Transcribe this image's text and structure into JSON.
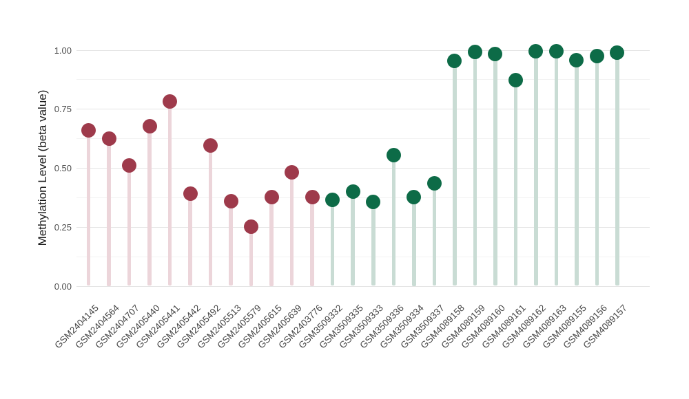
{
  "chart_data": {
    "type": "scatter",
    "variant": "lollipop",
    "title": "",
    "xlabel": "",
    "ylabel": "Methylation Level (beta value)",
    "ylim": [
      0,
      1
    ],
    "grid": true,
    "legend_position": "none",
    "yticks": [
      {
        "label": "0.00",
        "value": 0.0
      },
      {
        "label": "0.25",
        "value": 0.25
      },
      {
        "label": "0.50",
        "value": 0.5
      },
      {
        "label": "0.75",
        "value": 0.75
      },
      {
        "label": "1.00",
        "value": 1.0
      }
    ],
    "minor_gridlines": [
      0.125,
      0.375,
      0.625,
      0.875
    ],
    "groups": {
      "maroon": {
        "dot_color": "#9e3a4b",
        "stem_color": "#ecd5da"
      },
      "green": {
        "dot_color": "#0d6b47",
        "stem_color": "#c9dcd4"
      }
    },
    "points": [
      {
        "label": "GSM2404145",
        "value": 0.66,
        "group": "maroon"
      },
      {
        "label": "GSM2404564",
        "value": 0.625,
        "group": "maroon"
      },
      {
        "label": "GSM2404707",
        "value": 0.51,
        "group": "maroon"
      },
      {
        "label": "GSM2405440",
        "value": 0.675,
        "group": "maroon"
      },
      {
        "label": "GSM2405441",
        "value": 0.78,
        "group": "maroon"
      },
      {
        "label": "GSM2405442",
        "value": 0.39,
        "group": "maroon"
      },
      {
        "label": "GSM2405492",
        "value": 0.595,
        "group": "maroon"
      },
      {
        "label": "GSM2405513",
        "value": 0.36,
        "group": "maroon"
      },
      {
        "label": "GSM2405579",
        "value": 0.25,
        "group": "maroon"
      },
      {
        "label": "GSM2405615",
        "value": 0.375,
        "group": "maroon"
      },
      {
        "label": "GSM2405639",
        "value": 0.48,
        "group": "maroon"
      },
      {
        "label": "GSM2403776",
        "value": 0.375,
        "group": "maroon"
      },
      {
        "label": "GSM3509332",
        "value": 0.365,
        "group": "green"
      },
      {
        "label": "GSM3509335",
        "value": 0.4,
        "group": "green"
      },
      {
        "label": "GSM3509333",
        "value": 0.355,
        "group": "green"
      },
      {
        "label": "GSM3509336",
        "value": 0.555,
        "group": "green"
      },
      {
        "label": "GSM3509334",
        "value": 0.375,
        "group": "green"
      },
      {
        "label": "GSM3509337",
        "value": 0.435,
        "group": "green"
      },
      {
        "label": "GSM4089158",
        "value": 0.952,
        "group": "green"
      },
      {
        "label": "GSM4089159",
        "value": 0.99,
        "group": "green"
      },
      {
        "label": "GSM4089160",
        "value": 0.982,
        "group": "green"
      },
      {
        "label": "GSM4089161",
        "value": 0.873,
        "group": "green"
      },
      {
        "label": "GSM4089162",
        "value": 0.995,
        "group": "green"
      },
      {
        "label": "GSM4089163",
        "value": 0.995,
        "group": "green"
      },
      {
        "label": "GSM4089155",
        "value": 0.955,
        "group": "green"
      },
      {
        "label": "GSM4089156",
        "value": 0.973,
        "group": "green"
      },
      {
        "label": "GSM4089157",
        "value": 0.988,
        "group": "green"
      }
    ]
  }
}
